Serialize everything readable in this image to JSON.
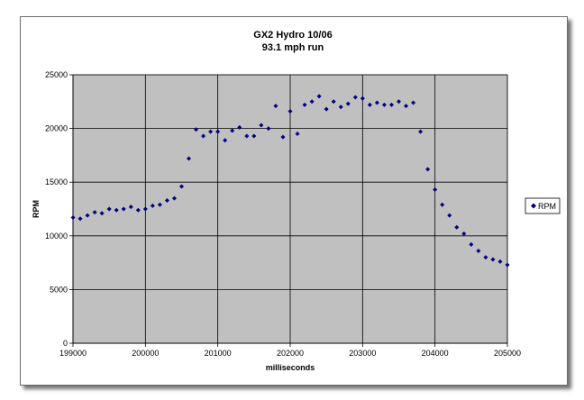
{
  "chart_data": {
    "type": "scatter",
    "title": "GX2 Hydro 10/06",
    "subtitle": "93.1 mph run",
    "xlabel": "milliseconds",
    "ylabel": "RPM",
    "xlim": [
      199000,
      205000
    ],
    "ylim": [
      0,
      25000
    ],
    "x_ticks": [
      199000,
      200000,
      201000,
      202000,
      203000,
      204000,
      205000
    ],
    "y_ticks": [
      0,
      5000,
      10000,
      15000,
      20000,
      25000
    ],
    "grid": true,
    "legend_position": "right",
    "plot_background": "#c0c0c0",
    "marker_color": "#000080",
    "series": [
      {
        "name": "RPM",
        "points": [
          [
            199000,
            11700
          ],
          [
            199100,
            11600
          ],
          [
            199200,
            11900
          ],
          [
            199300,
            12200
          ],
          [
            199400,
            12100
          ],
          [
            199500,
            12500
          ],
          [
            199600,
            12400
          ],
          [
            199700,
            12500
          ],
          [
            199800,
            12700
          ],
          [
            199900,
            12400
          ],
          [
            200000,
            12500
          ],
          [
            200100,
            12800
          ],
          [
            200200,
            12900
          ],
          [
            200300,
            13300
          ],
          [
            200400,
            13500
          ],
          [
            200500,
            14600
          ],
          [
            200600,
            17200
          ],
          [
            200700,
            19900
          ],
          [
            200800,
            19300
          ],
          [
            200900,
            19700
          ],
          [
            201000,
            19700
          ],
          [
            201100,
            18900
          ],
          [
            201200,
            19800
          ],
          [
            201300,
            20100
          ],
          [
            201400,
            19300
          ],
          [
            201500,
            19300
          ],
          [
            201600,
            20300
          ],
          [
            201700,
            20000
          ],
          [
            201800,
            22100
          ],
          [
            201900,
            19200
          ],
          [
            202000,
            21600
          ],
          [
            202100,
            19500
          ],
          [
            202200,
            22200
          ],
          [
            202300,
            22500
          ],
          [
            202400,
            23000
          ],
          [
            202500,
            21800
          ],
          [
            202600,
            22500
          ],
          [
            202700,
            22000
          ],
          [
            202800,
            22300
          ],
          [
            202900,
            22900
          ],
          [
            203000,
            22800
          ],
          [
            203100,
            22200
          ],
          [
            203200,
            22400
          ],
          [
            203300,
            22200
          ],
          [
            203400,
            22200
          ],
          [
            203500,
            22500
          ],
          [
            203600,
            22100
          ],
          [
            203700,
            22400
          ],
          [
            203800,
            19700
          ],
          [
            203900,
            16200
          ],
          [
            204000,
            14300
          ],
          [
            204100,
            12900
          ],
          [
            204200,
            11900
          ],
          [
            204300,
            10800
          ],
          [
            204400,
            10200
          ],
          [
            204500,
            9200
          ],
          [
            204600,
            8600
          ],
          [
            204700,
            8000
          ],
          [
            204800,
            7800
          ],
          [
            204900,
            7600
          ],
          [
            205000,
            7300
          ]
        ]
      }
    ]
  }
}
